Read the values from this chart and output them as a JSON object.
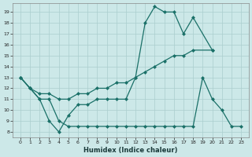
{
  "xlabel": "Humidex (Indice chaleur)",
  "x_all": [
    0,
    1,
    2,
    3,
    4,
    5,
    6,
    7,
    8,
    9,
    10,
    11,
    12,
    13,
    14,
    15,
    16,
    17,
    18,
    19,
    20,
    21,
    22,
    23
  ],
  "line1_x": [
    0,
    1,
    2,
    3,
    4,
    5,
    6,
    7,
    8,
    9,
    10,
    11,
    12,
    13,
    14,
    15,
    16,
    17,
    18,
    20
  ],
  "line1_y": [
    13,
    12,
    11,
    9,
    8,
    9.5,
    10.5,
    10.5,
    11,
    11,
    11,
    11,
    13,
    18,
    19.5,
    19,
    19,
    17,
    18.5,
    15.5
  ],
  "line2_x": [
    0,
    1,
    2,
    3,
    4,
    5,
    6,
    7,
    8,
    9,
    10,
    11,
    12,
    13,
    14,
    15,
    16,
    17,
    18,
    20
  ],
  "line2_y": [
    13,
    12,
    11.5,
    11.5,
    11,
    11,
    11.5,
    11.5,
    12,
    12,
    12.5,
    12.5,
    13,
    13.5,
    14,
    14.5,
    15,
    15,
    15.5,
    15.5
  ],
  "line3_x": [
    0,
    1,
    2,
    3,
    4,
    5,
    6,
    7,
    8,
    9,
    10,
    11,
    12,
    13,
    14,
    15,
    16,
    17,
    18,
    19,
    20,
    21,
    22,
    23
  ],
  "line3_y": [
    13,
    12,
    11,
    11,
    9,
    8.5,
    8.5,
    8.5,
    8.5,
    8.5,
    8.5,
    8.5,
    8.5,
    8.5,
    8.5,
    8.5,
    8.5,
    8.5,
    8.5,
    13,
    11,
    10,
    8.5,
    8.5
  ],
  "ylim": [
    7.5,
    19.8
  ],
  "xlim": [
    -0.8,
    23.8
  ],
  "yticks": [
    8,
    9,
    10,
    11,
    12,
    13,
    14,
    15,
    16,
    17,
    18,
    19
  ],
  "xticks": [
    0,
    1,
    2,
    3,
    4,
    5,
    6,
    7,
    8,
    9,
    10,
    11,
    12,
    13,
    14,
    15,
    16,
    17,
    18,
    19,
    20,
    21,
    22,
    23
  ],
  "bg_color": "#cce8e8",
  "grid_color": "#aacece",
  "line_color": "#1a7068",
  "marker_size": 2.5,
  "linewidth": 0.9
}
